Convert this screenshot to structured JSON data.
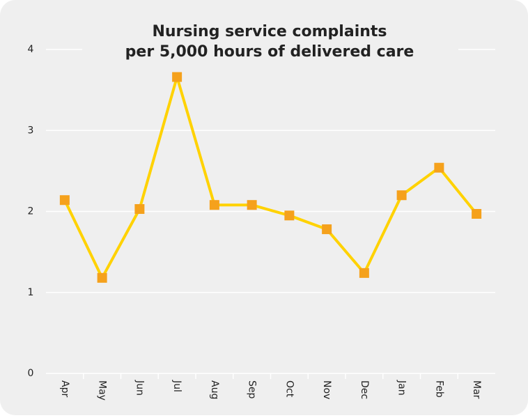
{
  "chart_data": {
    "type": "line",
    "title": [
      "Nursing service complaints",
      "per 5,000 hours of delivered care"
    ],
    "categories": [
      "Apr",
      "May",
      "Jun",
      "Jul",
      "Aug",
      "Sep",
      "Oct",
      "Nov",
      "Dec",
      "Jan",
      "Feb",
      "Mar"
    ],
    "series": [
      {
        "color": "#ffd200",
        "marker_color": "#f5a11c",
        "values": [
          2.14,
          1.18,
          2.03,
          3.66,
          2.08,
          2.08,
          1.95,
          1.78,
          1.24,
          2.2,
          2.54,
          1.97
        ]
      }
    ],
    "ylim": [
      0,
      4
    ],
    "yticks": [
      0,
      1,
      2,
      3,
      4
    ],
    "grid": true
  }
}
